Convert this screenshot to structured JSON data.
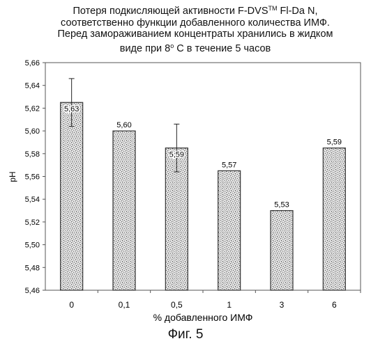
{
  "figure_label": "Фиг. 5",
  "chart_data": {
    "type": "bar",
    "title": {
      "line1_pre": "Потеря подкисляющей активности F-DVS",
      "line1_tm": "TM",
      "line1_post": " Fl-Da N,",
      "line2": "соответственно функции добавленного количества ИМФ.",
      "line3": "Перед замораживанием концентраты хранились в жидком",
      "line4_pre": "виде при 8",
      "line4_sup": "o",
      "line4_post": " С в течение 5 часов"
    },
    "xlabel": "% добавленного ИМФ",
    "ylabel": "pH",
    "ylim": [
      5.46,
      5.66
    ],
    "yticks": [
      "5,46",
      "5,48",
      "5,50",
      "5,52",
      "5,54",
      "5,56",
      "5,58",
      "5,60",
      "5,62",
      "5,64",
      "5,66"
    ],
    "grid": false,
    "categories": [
      "0",
      "0,1",
      "0,5",
      "1",
      "3",
      "6"
    ],
    "values": [
      5.625,
      5.6,
      5.585,
      5.565,
      5.53,
      5.585
    ],
    "data_labels": [
      "5,63",
      "5,60",
      "5,59",
      "5,57",
      "5,53",
      "5,59"
    ],
    "errors": [
      0.021,
      0.0,
      0.021,
      0.0,
      0.0,
      0.0
    ],
    "bar_color": "#bdbdbd"
  }
}
